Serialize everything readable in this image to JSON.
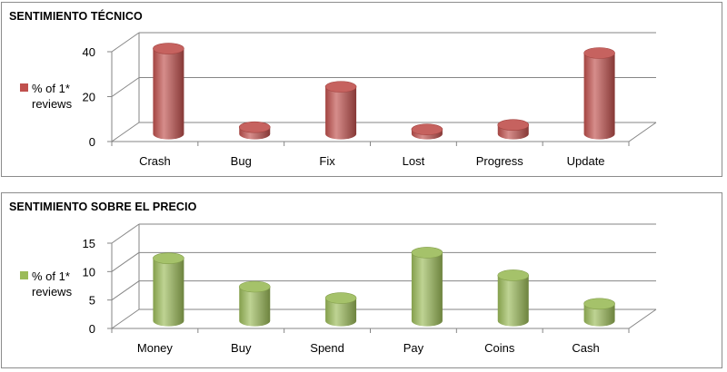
{
  "chart_data": [
    {
      "type": "bar",
      "title": "SENTIMIENTO TÉCNICO",
      "categories": [
        "Crash",
        "Bug",
        "Fix",
        "Lost",
        "Progress",
        "Update"
      ],
      "series": [
        {
          "name": "% of 1* reviews",
          "values": [
            38,
            3,
            21,
            2,
            4,
            36
          ]
        }
      ],
      "ylim": [
        0,
        40
      ],
      "yticks": [
        "0",
        "20",
        "40"
      ],
      "legend_position": "left",
      "legend_lines": [
        "% of 1*",
        "reviews"
      ],
      "color": "#c0504d",
      "grid": true,
      "style": "3d-cylinder"
    },
    {
      "type": "bar",
      "title": "SENTIMIENTO SOBRE EL PRECIO",
      "categories": [
        "Money",
        "Buy",
        "Spend",
        "Pay",
        "Coins",
        "Cash"
      ],
      "series": [
        {
          "name": "% of 1* reviews",
          "values": [
            11,
            6,
            4,
            12,
            8,
            3
          ]
        }
      ],
      "ylim": [
        0,
        15
      ],
      "yticks": [
        "0",
        "5",
        "10",
        "15"
      ],
      "legend_position": "left",
      "legend_lines": [
        "% of 1*",
        "reviews"
      ],
      "color": "#9bbb59",
      "grid": true,
      "style": "3d-cylinder"
    }
  ]
}
